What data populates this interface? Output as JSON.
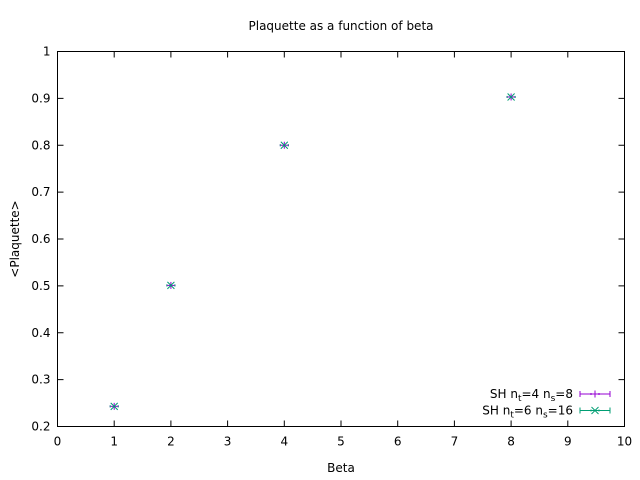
{
  "chart_data": {
    "type": "scatter",
    "title": "Plaquette as a function of beta",
    "xlabel": "Beta",
    "ylabel": "<Plaquette>",
    "xlim": [
      0,
      10
    ],
    "ylim": [
      0.2,
      1
    ],
    "xticks": [
      0,
      1,
      2,
      3,
      4,
      5,
      6,
      7,
      8,
      9,
      10
    ],
    "yticks": [
      0.2,
      0.3,
      0.4,
      0.5,
      0.6,
      0.7,
      0.8,
      0.9,
      1
    ],
    "grid": false,
    "legend_position": "bottom-right",
    "series": [
      {
        "legend": {
          "prefix": "SH n",
          "sub1": "t",
          "mid": "=4 n",
          "sub2": "s",
          "suffix": "=8"
        },
        "marker": "plus",
        "color": "#9400d3",
        "x": [
          1,
          2,
          4,
          8
        ],
        "y": [
          0.243,
          0.501,
          0.8,
          0.903
        ]
      },
      {
        "legend": {
          "prefix": "SH n",
          "sub1": "t",
          "mid": "=6 n",
          "sub2": "s",
          "suffix": "=16"
        },
        "marker": "cross",
        "color": "#009e73",
        "x": [
          1,
          2,
          4,
          8
        ],
        "y": [
          0.243,
          0.501,
          0.8,
          0.903
        ]
      }
    ]
  }
}
